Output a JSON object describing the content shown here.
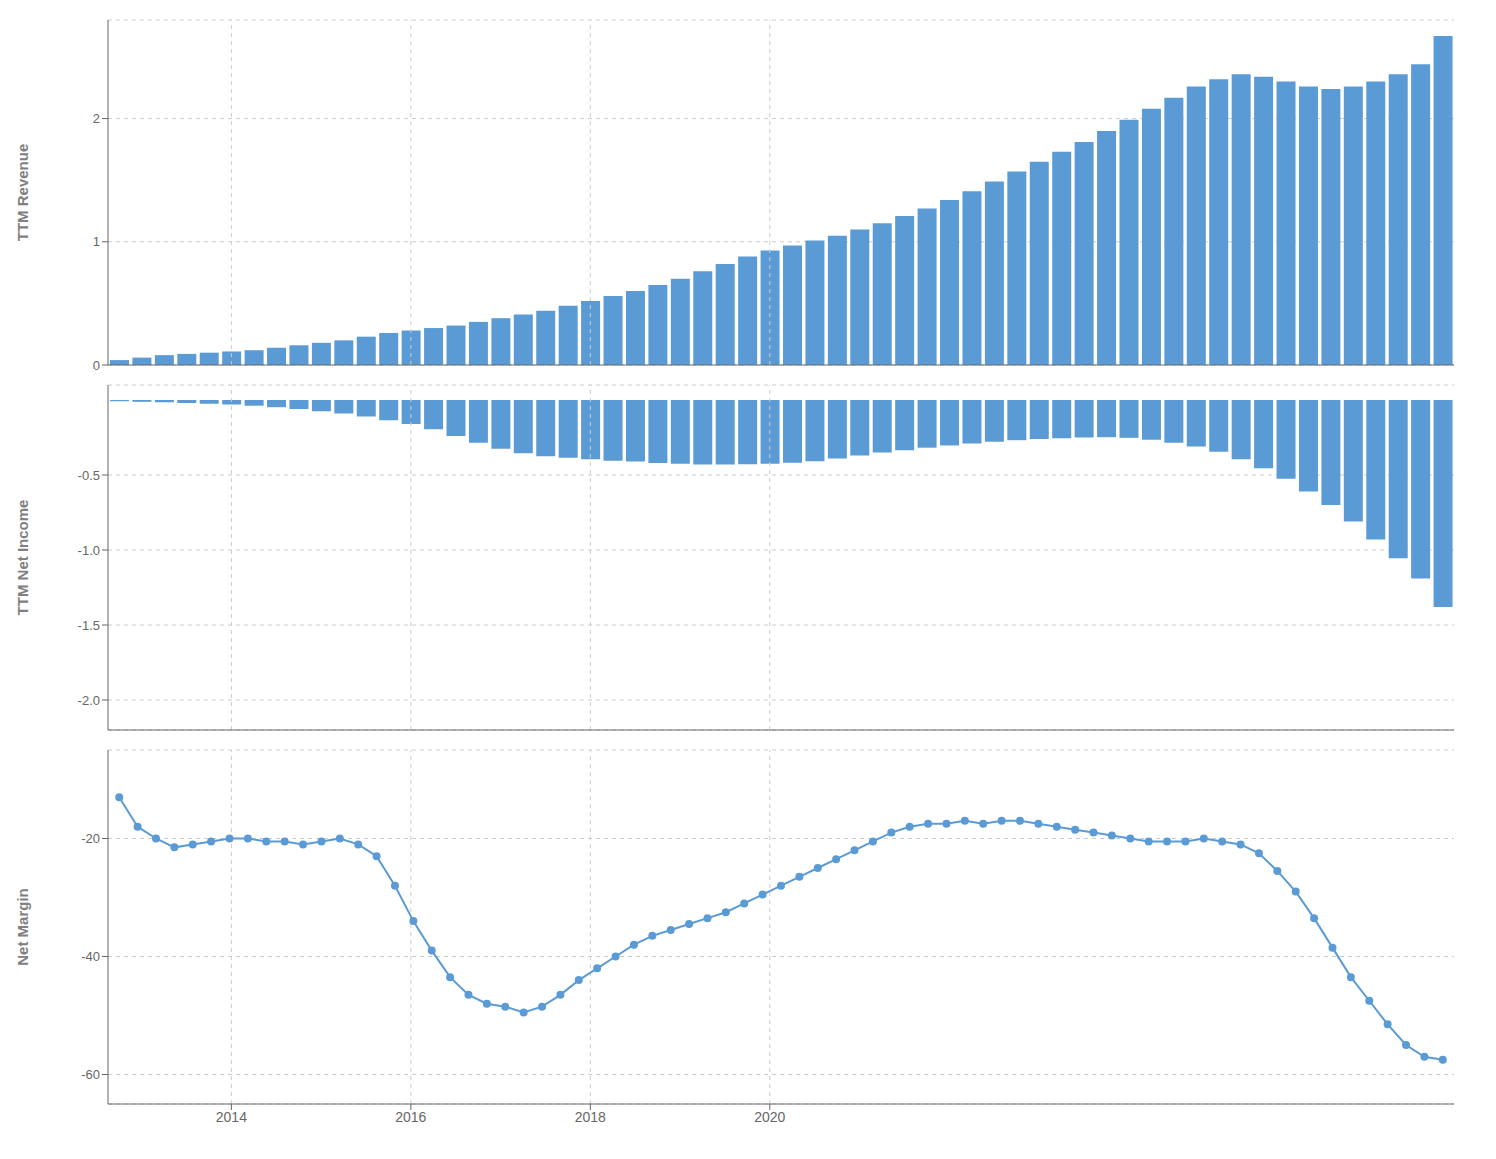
{
  "chart_data": [
    {
      "type": "bar",
      "ylabel": "TTM Revenue",
      "color": "#5b9bd5",
      "grid": true,
      "tick_labels": "y",
      "x": [
        2012.75,
        2013,
        2013.25,
        2013.5,
        2013.75,
        2014,
        2014.25,
        2014.5,
        2014.75,
        2015,
        2015.25,
        2015.5,
        2015.75,
        2016,
        2016.25,
        2016.5,
        2016.75,
        2017,
        2017.25,
        2017.5,
        2017.75,
        2018,
        2018.25,
        2018.5,
        2018.75,
        2019,
        2019.25,
        2019.5,
        2019.75,
        2020,
        2020.25,
        2020.5,
        2020.75,
        2021,
        2021.25,
        2021.5,
        2021.75,
        2022,
        2022.25,
        2022.5,
        2022.75,
        2023,
        2023.25,
        2023.5,
        2023.75,
        2024,
        2024.25,
        2024.5,
        2024.75,
        2025,
        2025.25,
        2025.5,
        2025.75,
        2026,
        2026.25,
        2026.5,
        2026.75,
        2027,
        2027.25,
        2027.5
      ],
      "values": [
        0.04,
        0.06,
        0.08,
        0.09,
        0.1,
        0.11,
        0.12,
        0.14,
        0.16,
        0.18,
        0.2,
        0.23,
        0.26,
        0.28,
        0.3,
        0.32,
        0.35,
        0.38,
        0.41,
        0.44,
        0.48,
        0.52,
        0.56,
        0.6,
        0.65,
        0.7,
        0.76,
        0.82,
        0.88,
        0.93,
        0.97,
        1.01,
        1.05,
        1.1,
        1.15,
        1.21,
        1.27,
        1.34,
        1.41,
        1.49,
        1.57,
        1.65,
        1.73,
        1.81,
        1.9,
        1.99,
        2.08,
        2.17,
        2.26,
        2.32,
        2.36,
        2.34,
        2.3,
        2.26,
        2.24,
        2.26,
        2.3,
        2.36,
        2.44,
        2.67
      ],
      "xlim": [
        2012.625,
        2027.625
      ],
      "xticks": [
        2014,
        2016,
        2018,
        2020
      ],
      "ylim": [
        0,
        2.8
      ],
      "yticks": [
        0,
        1,
        2
      ]
    },
    {
      "type": "bar",
      "ylabel": "TTM Net Income",
      "color": "#5b9bd5",
      "grid": true,
      "tick_labels": "y",
      "x": [
        2012.75,
        2013,
        2013.25,
        2013.5,
        2013.75,
        2014,
        2014.25,
        2014.5,
        2014.75,
        2015,
        2015.25,
        2015.5,
        2015.75,
        2016,
        2016.25,
        2016.5,
        2016.75,
        2017,
        2017.25,
        2017.5,
        2017.75,
        2018,
        2018.25,
        2018.5,
        2018.75,
        2019,
        2019.25,
        2019.5,
        2019.75,
        2020,
        2020.25,
        2020.5,
        2020.75,
        2021,
        2021.25,
        2021.5,
        2021.75,
        2022,
        2022.25,
        2022.5,
        2022.75,
        2023,
        2023.25,
        2023.5,
        2023.75,
        2024,
        2024.25,
        2024.5,
        2024.75,
        2025,
        2025.25,
        2025.5,
        2025.75,
        2026,
        2026.25,
        2026.5,
        2026.75,
        2027,
        2027.25,
        2027.5
      ],
      "values": [
        -0.008,
        -0.012,
        -0.015,
        -0.02,
        -0.025,
        -0.03,
        -0.038,
        -0.048,
        -0.06,
        -0.075,
        -0.09,
        -0.11,
        -0.135,
        -0.16,
        -0.195,
        -0.24,
        -0.285,
        -0.325,
        -0.355,
        -0.375,
        -0.385,
        -0.395,
        -0.405,
        -0.41,
        -0.42,
        -0.425,
        -0.43,
        -0.43,
        -0.428,
        -0.425,
        -0.418,
        -0.408,
        -0.39,
        -0.37,
        -0.35,
        -0.335,
        -0.318,
        -0.303,
        -0.29,
        -0.278,
        -0.268,
        -0.26,
        -0.255,
        -0.25,
        -0.248,
        -0.252,
        -0.265,
        -0.285,
        -0.31,
        -0.345,
        -0.395,
        -0.455,
        -0.525,
        -0.61,
        -0.7,
        -0.81,
        -0.93,
        -1.055,
        -1.19,
        -1.38
      ],
      "xlim": [
        2012.625,
        2027.625
      ],
      "xticks": [
        2014,
        2016,
        2018,
        2020
      ],
      "ylim": [
        -2.2,
        0.1
      ],
      "yticks": [
        {
          "value": -2.0,
          "label": "-2.0"
        },
        -1.5,
        {
          "value": -1.0,
          "label": "-1.0"
        },
        -0.5
      ]
    },
    {
      "type": "line",
      "ylabel": "Net Margin",
      "color": "#5b9bd5",
      "grid": true,
      "marker": "circle",
      "x": [
        2012.75,
        2012.954861,
        2013.159722,
        2013.364583,
        2013.569444,
        2013.774306,
        2013.979167,
        2014.184028,
        2014.388889,
        2014.59375,
        2014.798611,
        2015.003472,
        2015.208333,
        2015.413194,
        2015.618056,
        2015.822917,
        2016.027778,
        2016.232639,
        2016.4375,
        2016.642361,
        2016.847222,
        2017.052083,
        2017.256944,
        2017.461806,
        2017.666667,
        2017.871528,
        2018.076389,
        2018.28125,
        2018.486111,
        2018.690972,
        2018.895833,
        2019.100694,
        2019.305556,
        2019.510417,
        2019.715278,
        2019.920139,
        2020.125,
        2020.329861,
        2020.534722,
        2020.739583,
        2020.944444,
        2021.149306,
        2021.354167,
        2021.559028,
        2021.763889,
        2021.96875,
        2022.173611,
        2022.378472,
        2022.583333,
        2022.788194,
        2022.993056,
        2023.197917,
        2023.402778,
        2023.607639,
        2023.8125,
        2024.017361,
        2024.222222,
        2024.427083,
        2024.631944,
        2024.836806,
        2025.041667,
        2025.246528,
        2025.451389,
        2025.65625,
        2025.861111,
        2026.065972,
        2026.270833,
        2026.475694,
        2026.680556,
        2026.885417,
        2027.090278,
        2027.295139,
        2027.5
      ],
      "values": [
        -13.0,
        -18.0,
        -20.0,
        -21.5,
        -21.0,
        -20.5,
        -20.0,
        -20.0,
        -20.5,
        -20.5,
        -21.0,
        -20.5,
        -20.0,
        -21.0,
        -23.0,
        -28.0,
        -34.0,
        -39.0,
        -43.5,
        -46.5,
        -48.0,
        -48.5,
        -49.5,
        -48.5,
        -46.5,
        -44.0,
        -42.0,
        -40.0,
        -38.0,
        -36.5,
        -35.5,
        -34.5,
        -33.5,
        -32.5,
        -31.0,
        -29.5,
        -28.0,
        -26.5,
        -25.0,
        -23.5,
        -22.0,
        -20.5,
        -19.0,
        -18.0,
        -17.5,
        -17.5,
        -17.0,
        -17.5,
        -17.0,
        -17.0,
        -17.5,
        -18.0,
        -18.5,
        -19.0,
        -19.5,
        -20.0,
        -20.5,
        -20.5,
        -20.5,
        -20.0,
        -20.5,
        -21.0,
        -22.5,
        -25.5,
        -29.0,
        -33.5,
        -38.5,
        -43.5,
        -47.5,
        -51.5,
        -55.0,
        -57.0,
        -57.5
      ],
      "xlim": [
        2012.625,
        2027.625
      ],
      "xticks": [
        2014,
        2016,
        2018,
        2020
      ],
      "ylim": [
        -65,
        -5
      ],
      "yticks": [
        -60,
        -40,
        -20
      ]
    }
  ]
}
